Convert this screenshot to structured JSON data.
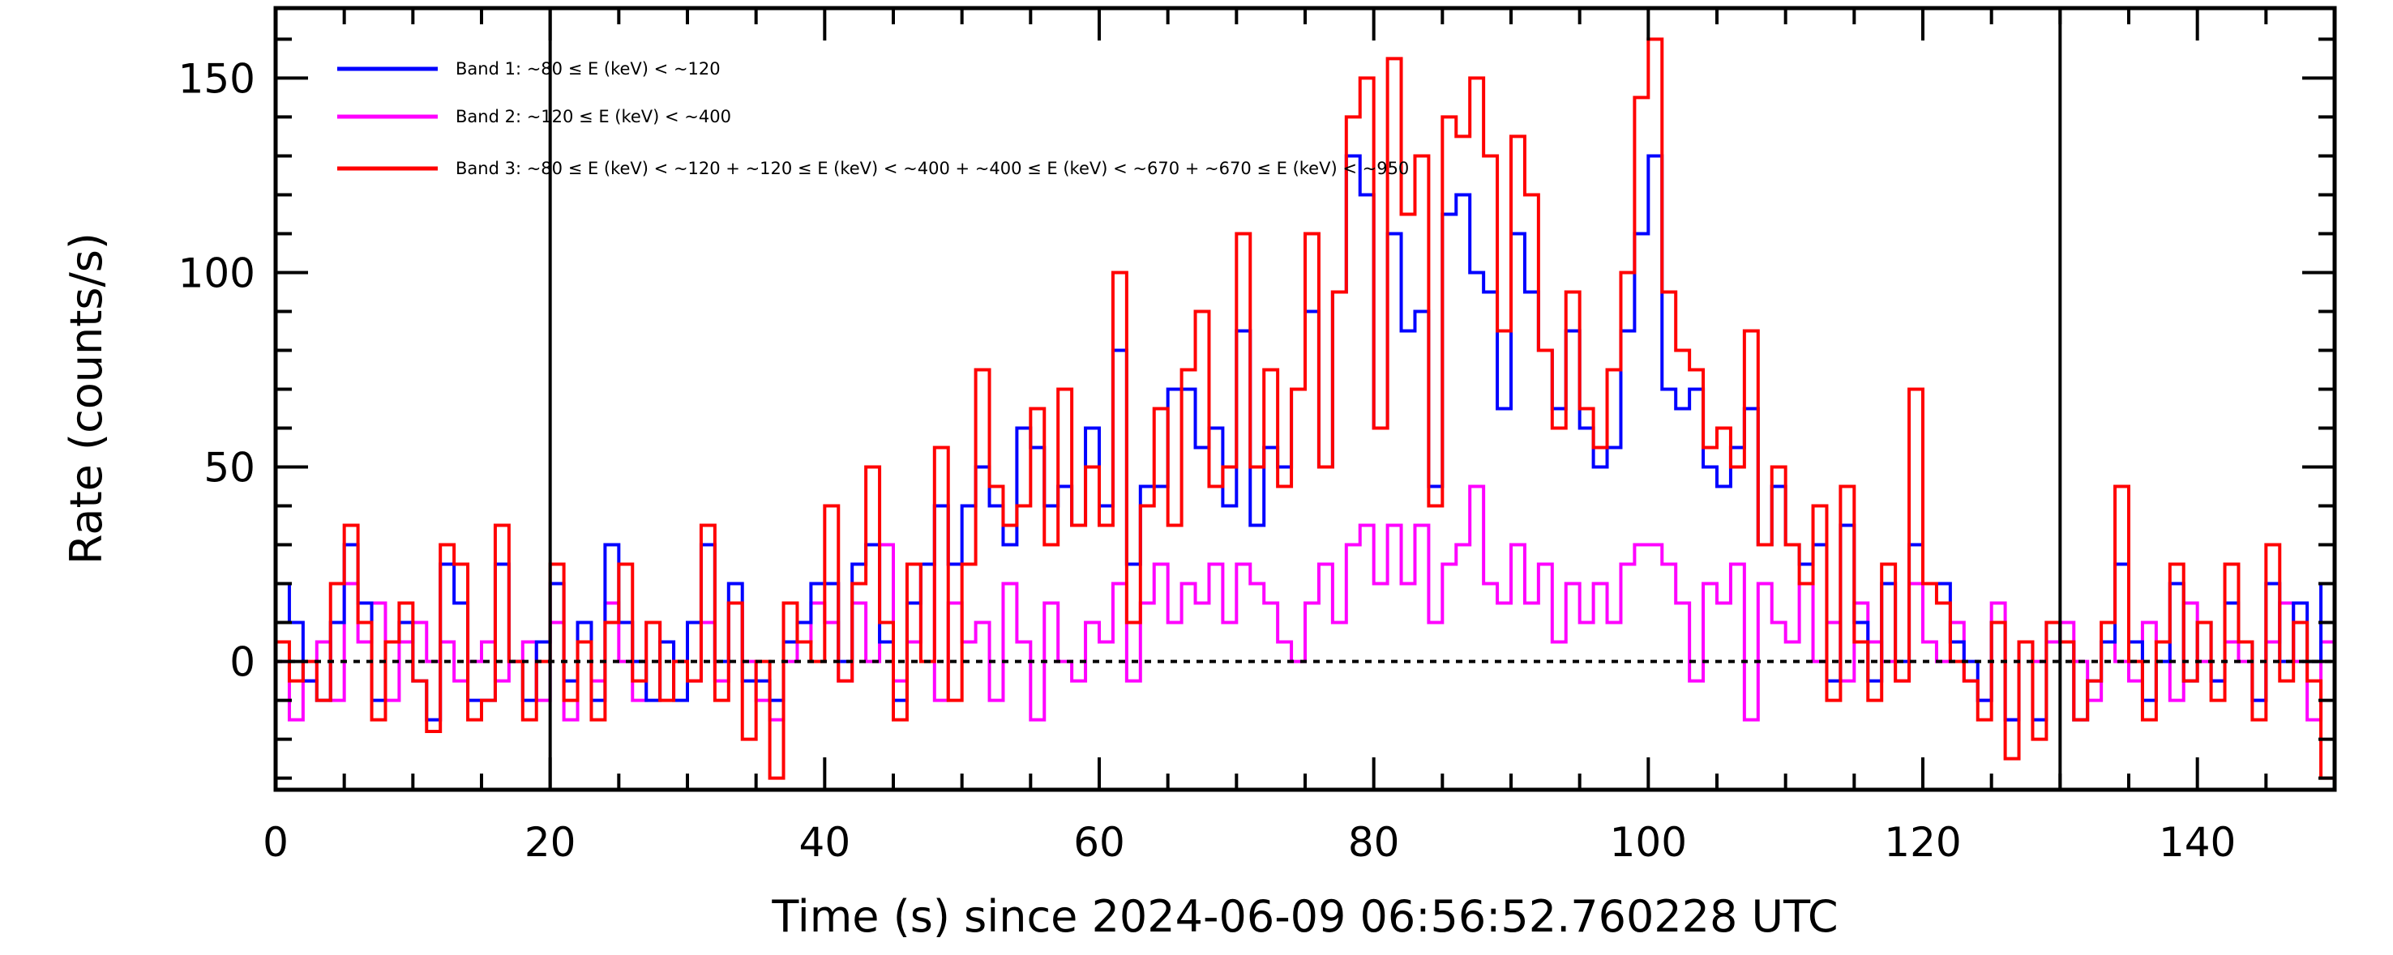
{
  "chart_data": {
    "type": "line",
    "style": "histogram-step",
    "title": "",
    "xlabel": "Time (s) since 2024-06-09 06:56:52.760228 UTC",
    "ylabel": "Rate (counts/s)",
    "xlim": [
      0,
      150
    ],
    "ylim": [
      -33,
      168
    ],
    "xticks": [
      0,
      20,
      40,
      60,
      80,
      100,
      120,
      140
    ],
    "yticks": [
      0,
      50,
      100,
      150
    ],
    "grid": false,
    "legend_placement": "top-left",
    "vertical_markers": [
      20,
      130
    ],
    "zero_line": 0,
    "bin_width": 1,
    "series": [
      {
        "name": "Band 1: ~80 ≤ E (keV) < ~120",
        "color": "#0000ff",
        "values": [
          20,
          10,
          -5,
          -10,
          10,
          30,
          15,
          -10,
          5,
          10,
          -5,
          -15,
          25,
          15,
          -10,
          -10,
          25,
          0,
          -10,
          5,
          20,
          -5,
          10,
          -10,
          30,
          10,
          0,
          -10,
          5,
          -10,
          10,
          30,
          0,
          20,
          -5,
          -5,
          -10,
          5,
          10,
          20,
          20,
          0,
          25,
          30,
          5,
          -10,
          15,
          25,
          40,
          25,
          40,
          50,
          40,
          30,
          60,
          55,
          40,
          45,
          35,
          60,
          40,
          80,
          25,
          45,
          45,
          70,
          70,
          55,
          60,
          40,
          85,
          35,
          55,
          50,
          70,
          90,
          50,
          95,
          130,
          120,
          60,
          110,
          85,
          90,
          45,
          115,
          120,
          100,
          95,
          65,
          110,
          95,
          80,
          65,
          85,
          60,
          50,
          55,
          85,
          110,
          130,
          70,
          65,
          70,
          50,
          45,
          55,
          65,
          30,
          45,
          30,
          25,
          30,
          -5,
          35,
          10,
          -5,
          20,
          0,
          30,
          20,
          20,
          5,
          0,
          -10,
          10,
          -15,
          5,
          -15,
          10,
          5,
          -15,
          -5,
          5,
          25,
          5,
          -10,
          0,
          20,
          -5,
          10,
          -5,
          15,
          5,
          -10,
          20,
          0,
          15,
          0,
          20
        ]
      },
      {
        "name": "Band 2: ~120 ≤ E (keV) < ~400",
        "color": "#ff00ff",
        "values": [
          0,
          -15,
          -5,
          5,
          -10,
          20,
          5,
          15,
          -10,
          5,
          10,
          0,
          5,
          -5,
          0,
          5,
          -5,
          0,
          5,
          -10,
          10,
          -15,
          5,
          -5,
          15,
          0,
          -10,
          10,
          5,
          0,
          -5,
          10,
          -5,
          15,
          0,
          -10,
          -15,
          0,
          5,
          15,
          10,
          -5,
          15,
          0,
          30,
          -5,
          5,
          25,
          -10,
          15,
          5,
          10,
          -10,
          20,
          5,
          -15,
          15,
          0,
          -5,
          10,
          5,
          20,
          -5,
          15,
          25,
          10,
          20,
          15,
          25,
          10,
          25,
          20,
          15,
          5,
          0,
          15,
          25,
          10,
          30,
          35,
          20,
          35,
          20,
          35,
          10,
          25,
          30,
          45,
          20,
          15,
          30,
          15,
          25,
          5,
          20,
          10,
          20,
          10,
          25,
          30,
          30,
          25,
          15,
          -5,
          20,
          15,
          25,
          -15,
          20,
          10,
          5,
          20,
          0,
          10,
          -5,
          15,
          5,
          0,
          -5,
          20,
          5,
          0,
          10,
          -5,
          -10,
          15,
          -15,
          5,
          0,
          5,
          10,
          0,
          -10,
          5,
          0,
          -5,
          10,
          5,
          -10,
          15,
          0,
          -5,
          5,
          0,
          -10,
          5,
          15,
          0,
          -15,
          5
        ]
      },
      {
        "name": "Band 3: ~80 ≤ E (keV) < ~120 + ~120 ≤ E (keV) < ~400 + ~400 ≤ E (keV) < ~670 + ~670 ≤ E (keV) < ~950",
        "color": "#ff0000",
        "values": [
          5,
          -5,
          0,
          -10,
          20,
          35,
          10,
          -15,
          5,
          15,
          -5,
          -18,
          30,
          25,
          -15,
          -10,
          35,
          0,
          -15,
          0,
          25,
          -10,
          5,
          -15,
          10,
          25,
          -5,
          10,
          -10,
          0,
          -5,
          35,
          -10,
          15,
          -20,
          0,
          -30,
          15,
          5,
          0,
          40,
          -5,
          20,
          50,
          10,
          -15,
          25,
          0,
          55,
          -10,
          25,
          75,
          45,
          35,
          40,
          65,
          30,
          70,
          35,
          50,
          35,
          100,
          10,
          40,
          65,
          35,
          75,
          90,
          45,
          50,
          110,
          50,
          75,
          45,
          70,
          110,
          50,
          95,
          140,
          150,
          60,
          155,
          115,
          130,
          40,
          140,
          135,
          150,
          130,
          85,
          135,
          120,
          80,
          60,
          95,
          65,
          55,
          75,
          100,
          145,
          160,
          95,
          80,
          75,
          55,
          60,
          50,
          85,
          30,
          50,
          30,
          20,
          40,
          -10,
          45,
          5,
          -10,
          25,
          -5,
          70,
          20,
          15,
          0,
          -5,
          -15,
          10,
          -25,
          5,
          -20,
          10,
          5,
          -15,
          -5,
          10,
          45,
          0,
          -15,
          5,
          25,
          -5,
          10,
          -10,
          25,
          5,
          -15,
          30,
          -5,
          10,
          -5,
          -30
        ]
      }
    ]
  }
}
